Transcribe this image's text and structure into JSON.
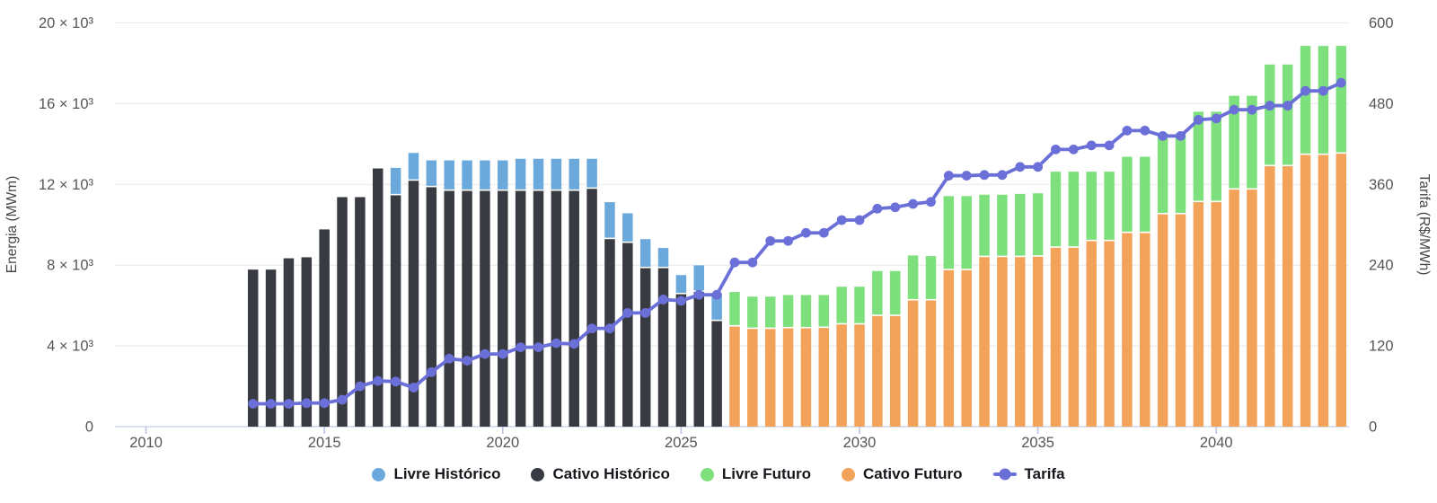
{
  "chart": {
    "left_axis": {
      "title": "Energia (MWm)",
      "tick_values": [
        0,
        4000,
        8000,
        12000,
        16000,
        20000
      ],
      "tick_labels": [
        "0",
        "4 × 10³",
        "8 × 10³",
        "12 × 10³",
        "16 × 10³",
        "20 × 10³"
      ]
    },
    "right_axis": {
      "title": "Tarifa (R$/MWh)",
      "tick_values": [
        0,
        120,
        240,
        360,
        480,
        600
      ],
      "tick_labels": [
        "0",
        "120",
        "240",
        "360",
        "480",
        "600"
      ]
    },
    "x_axis": {
      "tick_years": [
        2010,
        2015,
        2020,
        2025,
        2030,
        2035,
        2040
      ],
      "tick_labels": [
        "2010",
        "2015",
        "2020",
        "2025",
        "2030",
        "2035",
        "2040"
      ]
    },
    "colors": {
      "gridline": "#e8e8e8",
      "baseline": "#ccd6ee",
      "tick": "#b9c5e6",
      "tick_text": "#565656",
      "axis_title_text": "#454545",
      "legend_text": "#16181d",
      "background": "#ffffff"
    }
  },
  "legend": {
    "items": [
      {
        "key": "livre-historico",
        "label": "Livre Histórico",
        "marker": "circle",
        "color": "#6ba9dc"
      },
      {
        "key": "cativo-historico",
        "label": "Cativo Histórico",
        "marker": "circle",
        "color": "#383b42"
      },
      {
        "key": "livre-futuro",
        "label": "Livre Futuro",
        "marker": "circle",
        "color": "#7ee07d"
      },
      {
        "key": "cativo-futuro",
        "label": "Cativo Futuro",
        "marker": "line-dot",
        "color": "#f2a259"
      },
      {
        "key": "tarifa",
        "label": "Tarifa",
        "marker": "line-dot",
        "color": "#6b6fd8"
      }
    ],
    "marker_overrides": {
      "cativo-futuro": "circle"
    }
  },
  "chart_data": {
    "type": "bar",
    "subtype": "stacked-bars-with-line",
    "x_unit": "half-year",
    "x": [
      2013,
      2013.5,
      2014,
      2014.5,
      2015,
      2015.5,
      2016,
      2016.5,
      2017,
      2017.5,
      2018,
      2018.5,
      2019,
      2019.5,
      2020,
      2020.5,
      2021,
      2021.5,
      2022,
      2022.5,
      2023,
      2023.5,
      2024,
      2024.5,
      2025,
      2025.5,
      2026,
      2026.5,
      2027,
      2027.5,
      2028,
      2028.5,
      2029,
      2029.5,
      2030,
      2030.5,
      2031,
      2031.5,
      2032,
      2032.5,
      2033,
      2033.5,
      2034,
      2034.5,
      2035,
      2035.5,
      2036,
      2036.5,
      2037,
      2037.5,
      2038,
      2038.5,
      2039,
      2039.5,
      2040,
      2040.5,
      2041,
      2041.5,
      2042,
      2042.5,
      2043,
      2043.5
    ],
    "xlabel": "",
    "ylabel_left": "Energia (MWm)",
    "ylabel_right": "Tarifa (R$/MWh)",
    "left_ylim": [
      0,
      20000
    ],
    "right_ylim": [
      0,
      600
    ],
    "xlim": [
      2009.13,
      2043.72
    ],
    "grid": true,
    "legend_position": "bottom-center",
    "series": [
      {
        "name": "Cativo Histórico",
        "type": "bar",
        "stack_level": 0,
        "axis": "left",
        "color": "#383b42",
        "values": [
          7780,
          7780,
          8340,
          8390,
          9770,
          11370,
          11370,
          12790,
          11460,
          12180,
          11860,
          11680,
          11680,
          11680,
          11680,
          11680,
          11680,
          11680,
          11680,
          11780,
          9290,
          9100,
          7850,
          7850,
          6560,
          6670,
          5230,
          0,
          0,
          0,
          0,
          0,
          0,
          0,
          0,
          0,
          0,
          0,
          0,
          0,
          0,
          0,
          0,
          0,
          0,
          0,
          0,
          0,
          0,
          0,
          0,
          0,
          0,
          0,
          0,
          0,
          0,
          0,
          0,
          0,
          0,
          0
        ]
      },
      {
        "name": "Cativo Futuro",
        "type": "bar",
        "stack_level": 0,
        "axis": "left",
        "color": "#f2a259",
        "values": [
          0,
          0,
          0,
          0,
          0,
          0,
          0,
          0,
          0,
          0,
          0,
          0,
          0,
          0,
          0,
          0,
          0,
          0,
          0,
          0,
          0,
          0,
          0,
          0,
          0,
          0,
          0,
          4960,
          4840,
          4840,
          4870,
          4870,
          4890,
          5060,
          5060,
          5480,
          5480,
          6250,
          6250,
          7750,
          7750,
          8400,
          8400,
          8400,
          8420,
          8860,
          8860,
          9190,
          9190,
          9590,
          9590,
          10520,
          10520,
          11120,
          11120,
          11740,
          11740,
          12900,
          12900,
          13460,
          13460,
          13520
        ]
      },
      {
        "name": "Livre Histórico",
        "type": "bar",
        "stack_level": 1,
        "axis": "left",
        "color": "#6ba9dc",
        "values": [
          0,
          0,
          0,
          0,
          0,
          0,
          0,
          0,
          1360,
          1380,
          1330,
          1510,
          1510,
          1510,
          1510,
          1590,
          1590,
          1590,
          1590,
          1490,
          1830,
          1470,
          1440,
          1000,
          950,
          1320,
          1390,
          0,
          0,
          0,
          0,
          0,
          0,
          0,
          0,
          0,
          0,
          0,
          0,
          0,
          0,
          0,
          0,
          0,
          0,
          0,
          0,
          0,
          0,
          0,
          0,
          0,
          0,
          0,
          0,
          0,
          0,
          0,
          0,
          0,
          0,
          0
        ]
      },
      {
        "name": "Livre Futuro",
        "type": "bar",
        "stack_level": 1,
        "axis": "left",
        "color": "#7ee07d",
        "values": [
          0,
          0,
          0,
          0,
          0,
          0,
          0,
          0,
          0,
          0,
          0,
          0,
          0,
          0,
          0,
          0,
          0,
          0,
          0,
          0,
          0,
          0,
          0,
          0,
          0,
          0,
          0,
          1710,
          1600,
          1600,
          1650,
          1650,
          1630,
          1870,
          1870,
          2230,
          2230,
          2230,
          2200,
          3670,
          3670,
          3090,
          3090,
          3130,
          3140,
          3770,
          3770,
          3440,
          3440,
          3780,
          3780,
          4010,
          4010,
          4480,
          4480,
          4650,
          4650,
          5040,
          5040,
          5400,
          5400,
          5340
        ]
      },
      {
        "name": "Tarifa",
        "type": "line",
        "axis": "right",
        "color": "#6b6fd8",
        "values": [
          34,
          34,
          34,
          35,
          35,
          40,
          60,
          68,
          67,
          58,
          81,
          101,
          98,
          108,
          108,
          118,
          118,
          124,
          123,
          146,
          146,
          169,
          169,
          189,
          187,
          196,
          196,
          244,
          244,
          276,
          276,
          288,
          288,
          307,
          307,
          324,
          326,
          331,
          334,
          373,
          373,
          374,
          374,
          386,
          386,
          412,
          412,
          418,
          418,
          440,
          440,
          432,
          432,
          456,
          458,
          471,
          471,
          477,
          477,
          499,
          499,
          511
        ]
      }
    ]
  }
}
